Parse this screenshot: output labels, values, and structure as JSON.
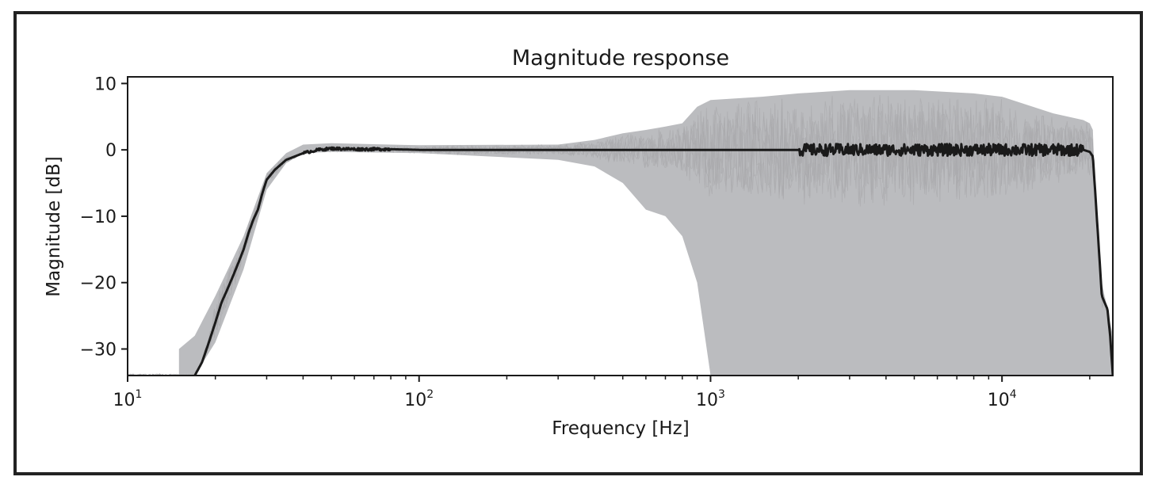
{
  "chart_data": {
    "type": "line",
    "title": "Magnitude response",
    "xlabel": "Frequency [Hz]",
    "ylabel": "Magnitude [dB]",
    "xscale": "log",
    "xlim": [
      10,
      24000
    ],
    "ylim": [
      -34,
      11
    ],
    "xticks": [
      {
        "value": 10,
        "base": "10",
        "exp": "1"
      },
      {
        "value": 100,
        "base": "10",
        "exp": "2"
      },
      {
        "value": 1000,
        "base": "10",
        "exp": "3"
      },
      {
        "value": 10000,
        "base": "10",
        "exp": "4"
      }
    ],
    "yticks": [
      {
        "value": 10,
        "label": "10"
      },
      {
        "value": 0,
        "label": "0"
      },
      {
        "value": -10,
        "label": "−10"
      },
      {
        "value": -20,
        "label": "−20"
      },
      {
        "value": -30,
        "label": "−30"
      }
    ],
    "grid": false,
    "legend": "none",
    "colors": {
      "mean": "#1a1a1a",
      "individual": "#bbbcbf",
      "frame": "#222222"
    },
    "series": [
      {
        "role": "mean",
        "x": [
          17,
          18,
          19,
          20,
          21,
          22,
          23,
          24,
          25,
          26,
          27,
          28,
          29,
          30,
          32,
          35,
          40,
          45,
          50,
          60,
          70,
          80,
          100,
          150,
          200,
          300,
          500,
          800,
          1000,
          1500,
          2000,
          3000,
          5000,
          8000,
          10000,
          15000,
          19000,
          20000,
          20500,
          21000,
          21500,
          22000,
          23000,
          23500,
          24000
        ],
        "y": [
          -34,
          -32,
          -29,
          -26,
          -23,
          -21,
          -19,
          -17,
          -15,
          -12.5,
          -10.5,
          -9,
          -6.5,
          -4.5,
          -3,
          -1.5,
          -0.5,
          0,
          0.2,
          0.1,
          0.1,
          0.1,
          0,
          0,
          0,
          0,
          0,
          0,
          0,
          0,
          0,
          0,
          0,
          0,
          0,
          0,
          0,
          -0.3,
          -1,
          -8,
          -15,
          -22,
          -24,
          -28,
          -34
        ]
      },
      {
        "role": "individual-envelope",
        "x": [
          15,
          17,
          20,
          25,
          30,
          35,
          40,
          50,
          100,
          300,
          400,
          500,
          600,
          700,
          800,
          900,
          1000,
          1500,
          2000,
          3000,
          5000,
          8000,
          10000,
          15000,
          19000,
          20000,
          20500,
          21000,
          22000,
          24000
        ],
        "upper": [
          -30,
          -28,
          -22,
          -13,
          -3.5,
          -0.5,
          0.8,
          1,
          0.7,
          0.8,
          1.5,
          2.5,
          3,
          3.5,
          4,
          6.5,
          7.5,
          8,
          8.5,
          9,
          9,
          8.5,
          8,
          5.5,
          4.5,
          4,
          3,
          -10,
          -20,
          -28
        ],
        "lower": [
          -34,
          -34,
          -29,
          -18,
          -6,
          -2,
          -0.5,
          -0.3,
          -0.5,
          -1.5,
          -2.5,
          -5,
          -9,
          -10,
          -13,
          -20,
          -34,
          -34,
          -34,
          -34,
          -34,
          -34,
          -34,
          -34,
          -34,
          -34,
          -34,
          -34,
          -34,
          -34
        ]
      }
    ]
  }
}
